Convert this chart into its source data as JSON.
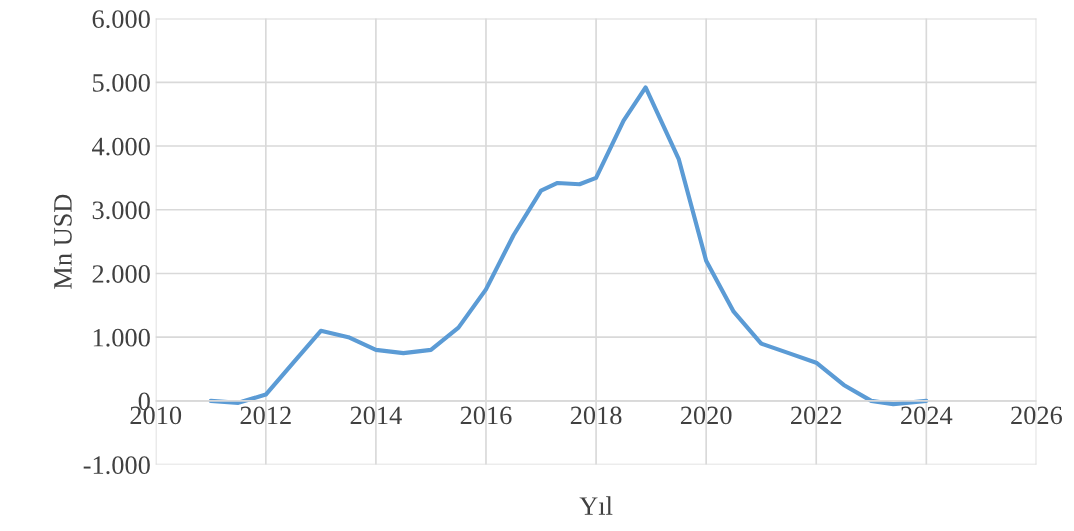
{
  "chart_data": {
    "type": "line",
    "xlabel": "Yıl",
    "ylabel": "Mn USD",
    "x": [
      2011,
      2011.5,
      2012,
      2012.5,
      2013,
      2013.5,
      2014,
      2014.5,
      2015,
      2015.5,
      2016,
      2016.5,
      2017,
      2017.3,
      2017.7,
      2018,
      2018.5,
      2018.9,
      2019.5,
      2020,
      2020.5,
      2021,
      2021.5,
      2022,
      2022.5,
      2023,
      2023.4,
      2024
    ],
    "series": [
      {
        "color": "#5b9bd5",
        "values": [
          0,
          -30,
          100,
          600,
          1100,
          1000,
          800,
          750,
          800,
          1150,
          1750,
          2600,
          3300,
          3420,
          3400,
          3500,
          4400,
          4920,
          3800,
          2200,
          1400,
          900,
          750,
          600,
          250,
          0,
          -50,
          0
        ]
      }
    ],
    "xlim": [
      2010,
      2026
    ],
    "xticks": [
      2010,
      2012,
      2014,
      2016,
      2018,
      2020,
      2022,
      2024,
      2026
    ],
    "ylim": [
      -1000,
      6000
    ],
    "yticks": [
      {
        "value": -1000,
        "label": "-1.000"
      },
      0,
      {
        "value": 1000,
        "label": "1.000"
      },
      {
        "value": 2000,
        "label": "2.000"
      },
      {
        "value": 3000,
        "label": "3.000"
      },
      {
        "value": 4000,
        "label": "4.000"
      },
      {
        "value": 5000,
        "label": "5.000"
      },
      {
        "value": 6000,
        "label": "6.000"
      }
    ],
    "grid": true,
    "legend": false,
    "marker": "none",
    "line_style": "solid"
  }
}
